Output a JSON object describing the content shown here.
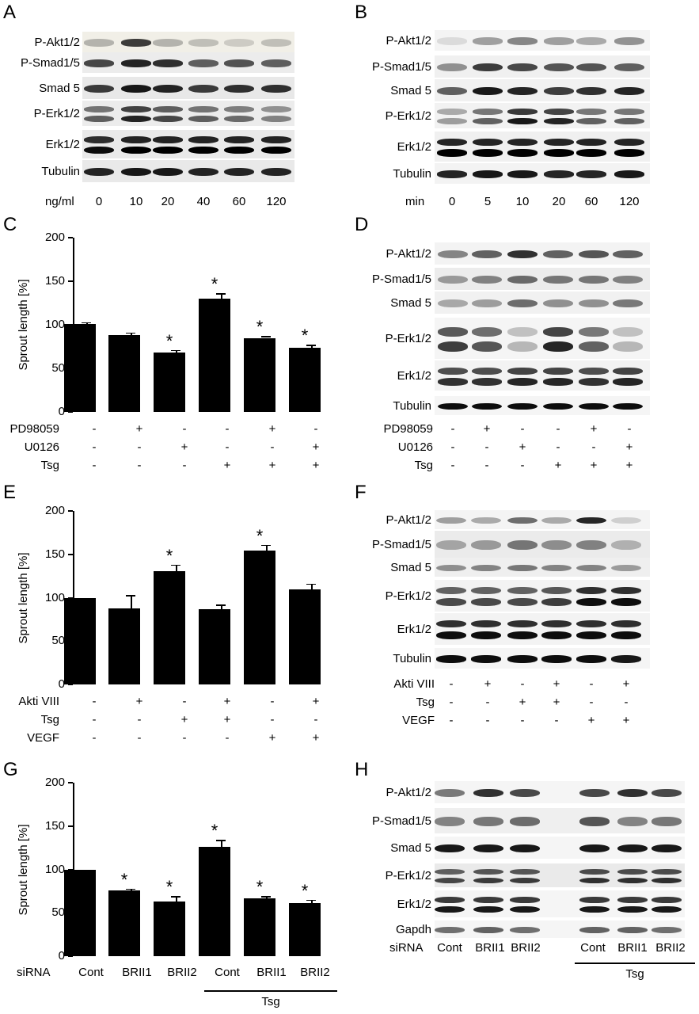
{
  "panels": {
    "A": {
      "letter": "A",
      "rows": [
        "P-Akt1/2",
        "P-Smad1/5",
        "Smad 5",
        "P-Erk1/2",
        "Erk1/2",
        "Tubulin"
      ],
      "x_unit": "ng/ml",
      "x_labels": [
        "0",
        "10",
        "20",
        "40",
        "60",
        "120"
      ]
    },
    "B": {
      "letter": "B",
      "rows": [
        "P-Akt1/2",
        "P-Smad1/5",
        "Smad 5",
        "P-Erk1/2",
        "Erk1/2",
        "Tubulin"
      ],
      "x_unit": "min",
      "x_labels": [
        "0",
        "5",
        "10",
        "20",
        "60",
        "120"
      ]
    },
    "C": {
      "letter": "C",
      "treat_names": [
        "PD98059",
        "U0126",
        "Tsg"
      ],
      "treat": [
        [
          "-",
          "+",
          "-",
          "-",
          "+",
          "-"
        ],
        [
          "-",
          "-",
          "+",
          "-",
          "-",
          "+"
        ],
        [
          "-",
          "-",
          "-",
          "+",
          "+",
          "+"
        ]
      ]
    },
    "D": {
      "letter": "D",
      "rows": [
        "P-Akt1/2",
        "P-Smad1/5",
        "Smad 5",
        "P-Erk1/2",
        "Erk1/2",
        "Tubulin"
      ],
      "treat_names": [
        "PD98059",
        "U0126",
        "Tsg"
      ],
      "treat": [
        [
          "-",
          "+",
          "-",
          "-",
          "+",
          "-"
        ],
        [
          "-",
          "-",
          "+",
          "-",
          "-",
          "+"
        ],
        [
          "-",
          "-",
          "-",
          "+",
          "+",
          "+"
        ]
      ]
    },
    "E": {
      "letter": "E",
      "treat_names": [
        "Akti VIII",
        "Tsg",
        "VEGF"
      ],
      "treat": [
        [
          "-",
          "+",
          "-",
          "+",
          "-",
          "+"
        ],
        [
          "-",
          "-",
          "+",
          "+",
          "-",
          "-"
        ],
        [
          "-",
          "-",
          "-",
          "-",
          "+",
          "+"
        ]
      ]
    },
    "F": {
      "letter": "F",
      "rows": [
        "P-Akt1/2",
        "P-Smad1/5",
        "Smad 5",
        "P-Erk1/2",
        "Erk1/2",
        "Tubulin"
      ],
      "treat_names": [
        "Akti VIII",
        "Tsg",
        "VEGF"
      ],
      "treat": [
        [
          "-",
          "+",
          "-",
          "+",
          "-",
          "+"
        ],
        [
          "-",
          "-",
          "+",
          "+",
          "-",
          "-"
        ],
        [
          "-",
          "-",
          "-",
          "-",
          "+",
          "+"
        ]
      ]
    },
    "G": {
      "letter": "G",
      "row_name": "siRNA",
      "group_label": "Tsg"
    },
    "H": {
      "letter": "H",
      "rows": [
        "P-Akt1/2",
        "P-Smad1/5",
        "Smad 5",
        "P-Erk1/2",
        "Erk1/2",
        "Gapdh"
      ],
      "row_name": "siRNA",
      "lanes": [
        "Cont",
        "BRII1",
        "BRII2",
        "Cont",
        "BRII1",
        "BRII2"
      ],
      "group_label": "Tsg"
    }
  },
  "chart_data": [
    {
      "type": "bar",
      "panel": "C",
      "ylabel": "Sprout length [%]",
      "ylim": [
        0,
        200
      ],
      "yticks": [
        "0",
        "50",
        "100",
        "150",
        "200"
      ],
      "values": [
        101,
        88,
        68,
        130,
        85,
        74
      ],
      "errors": [
        2,
        3,
        3,
        6,
        2,
        3
      ],
      "significant": [
        false,
        false,
        true,
        true,
        true,
        true
      ]
    },
    {
      "type": "bar",
      "panel": "E",
      "ylabel": "Sprout length [%]",
      "ylim": [
        0,
        200
      ],
      "yticks": [
        "0",
        "50",
        "100",
        "150",
        "200"
      ],
      "values": [
        100,
        88,
        131,
        87,
        154,
        110
      ],
      "errors": [
        0,
        15,
        7,
        5,
        7,
        6
      ],
      "significant": [
        false,
        false,
        true,
        false,
        true,
        false
      ]
    },
    {
      "type": "bar",
      "panel": "G",
      "ylabel": "Sprout length [%]",
      "ylim": [
        0,
        200
      ],
      "yticks": [
        "0",
        "50",
        "100",
        "150",
        "200"
      ],
      "categories": [
        "Cont",
        "BRII1",
        "BRII2",
        "Cont",
        "BRII1",
        "BRII2"
      ],
      "values": [
        100,
        76,
        63,
        126,
        67,
        61
      ],
      "errors": [
        0,
        2,
        6,
        8,
        2,
        4
      ],
      "significant": [
        false,
        true,
        true,
        true,
        true,
        true
      ]
    }
  ]
}
